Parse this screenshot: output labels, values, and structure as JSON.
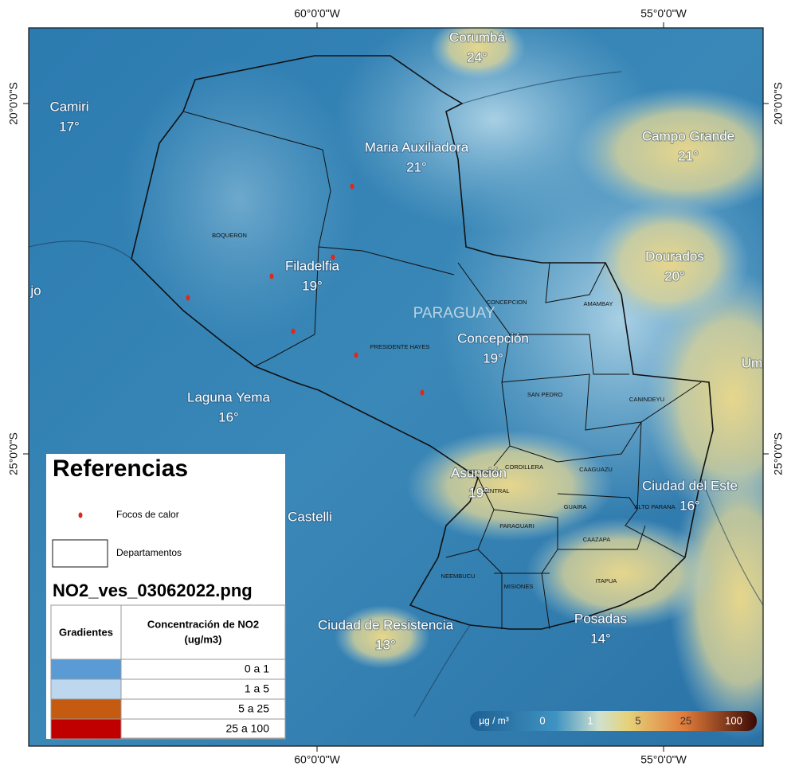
{
  "graticule": {
    "top": [
      "60°0'0\"W",
      "55°0'0\"W"
    ],
    "bottom": [
      "60°0'0\"W",
      "55°0'0\"W"
    ],
    "left": [
      "20°0'0\"S",
      "25°0'0\"S"
    ],
    "right": [
      "20°0'0\"S",
      "25°0'0\"S"
    ]
  },
  "country_label": "PARAGUAY",
  "cities": [
    {
      "name": "Corumbá",
      "temp": "24°"
    },
    {
      "name": "Camiri",
      "temp": "17°"
    },
    {
      "name": "Maria Auxiliadora",
      "temp": "21°"
    },
    {
      "name": "Campo Grande",
      "temp": "21°"
    },
    {
      "name": "Filadelfia",
      "temp": "19°"
    },
    {
      "name": "Dourados",
      "temp": "20°"
    },
    {
      "name": "Concepción",
      "temp": "19°"
    },
    {
      "name": "Laguna Yema",
      "temp": "16°"
    },
    {
      "name": "Asunción",
      "temp": "19°"
    },
    {
      "name": "Ciudad del Este",
      "temp": "16°"
    },
    {
      "name": "Ciudad de Resistencia",
      "temp": "13°"
    },
    {
      "name": "Posadas",
      "temp": "14°"
    }
  ],
  "partial_labels": [
    "jo",
    "Castelli",
    "Um"
  ],
  "departments": [
    "BOQUERON",
    "CONCEPCION",
    "AMAMBAY",
    "PRESIDENTE HAYES",
    "SAN PEDRO",
    "CANINDEYU",
    "CORDILLERA",
    "CAAGUAZU",
    "ASUNCION",
    "CENTRAL",
    "GUAIRA",
    "ALTO PARANA",
    "PARAGUARI",
    "CAAZAPA",
    "NEEMBUCU",
    "MISIONES",
    "ITAPUA"
  ],
  "legend": {
    "title": "Referencias",
    "items": [
      "Focos de calor",
      "Departamentos"
    ],
    "layer": "NO2_ves_03062022.png",
    "table": {
      "headers": [
        "Gradientes",
        [
          "Concentración de NO2",
          "(ug/m3)"
        ]
      ],
      "rows": [
        {
          "color": "#5b9bd5",
          "label": "0 a 1"
        },
        {
          "color": "#bdd7ee",
          "label": "1 a 5"
        },
        {
          "color": "#c55a11",
          "label": "5 a 25"
        },
        {
          "color": "#c00000",
          "label": "25 a 100"
        }
      ]
    }
  },
  "colorbar": {
    "unit": "µg / m³",
    "ticks": [
      "0",
      "1",
      "5",
      "25",
      "100"
    ]
  }
}
